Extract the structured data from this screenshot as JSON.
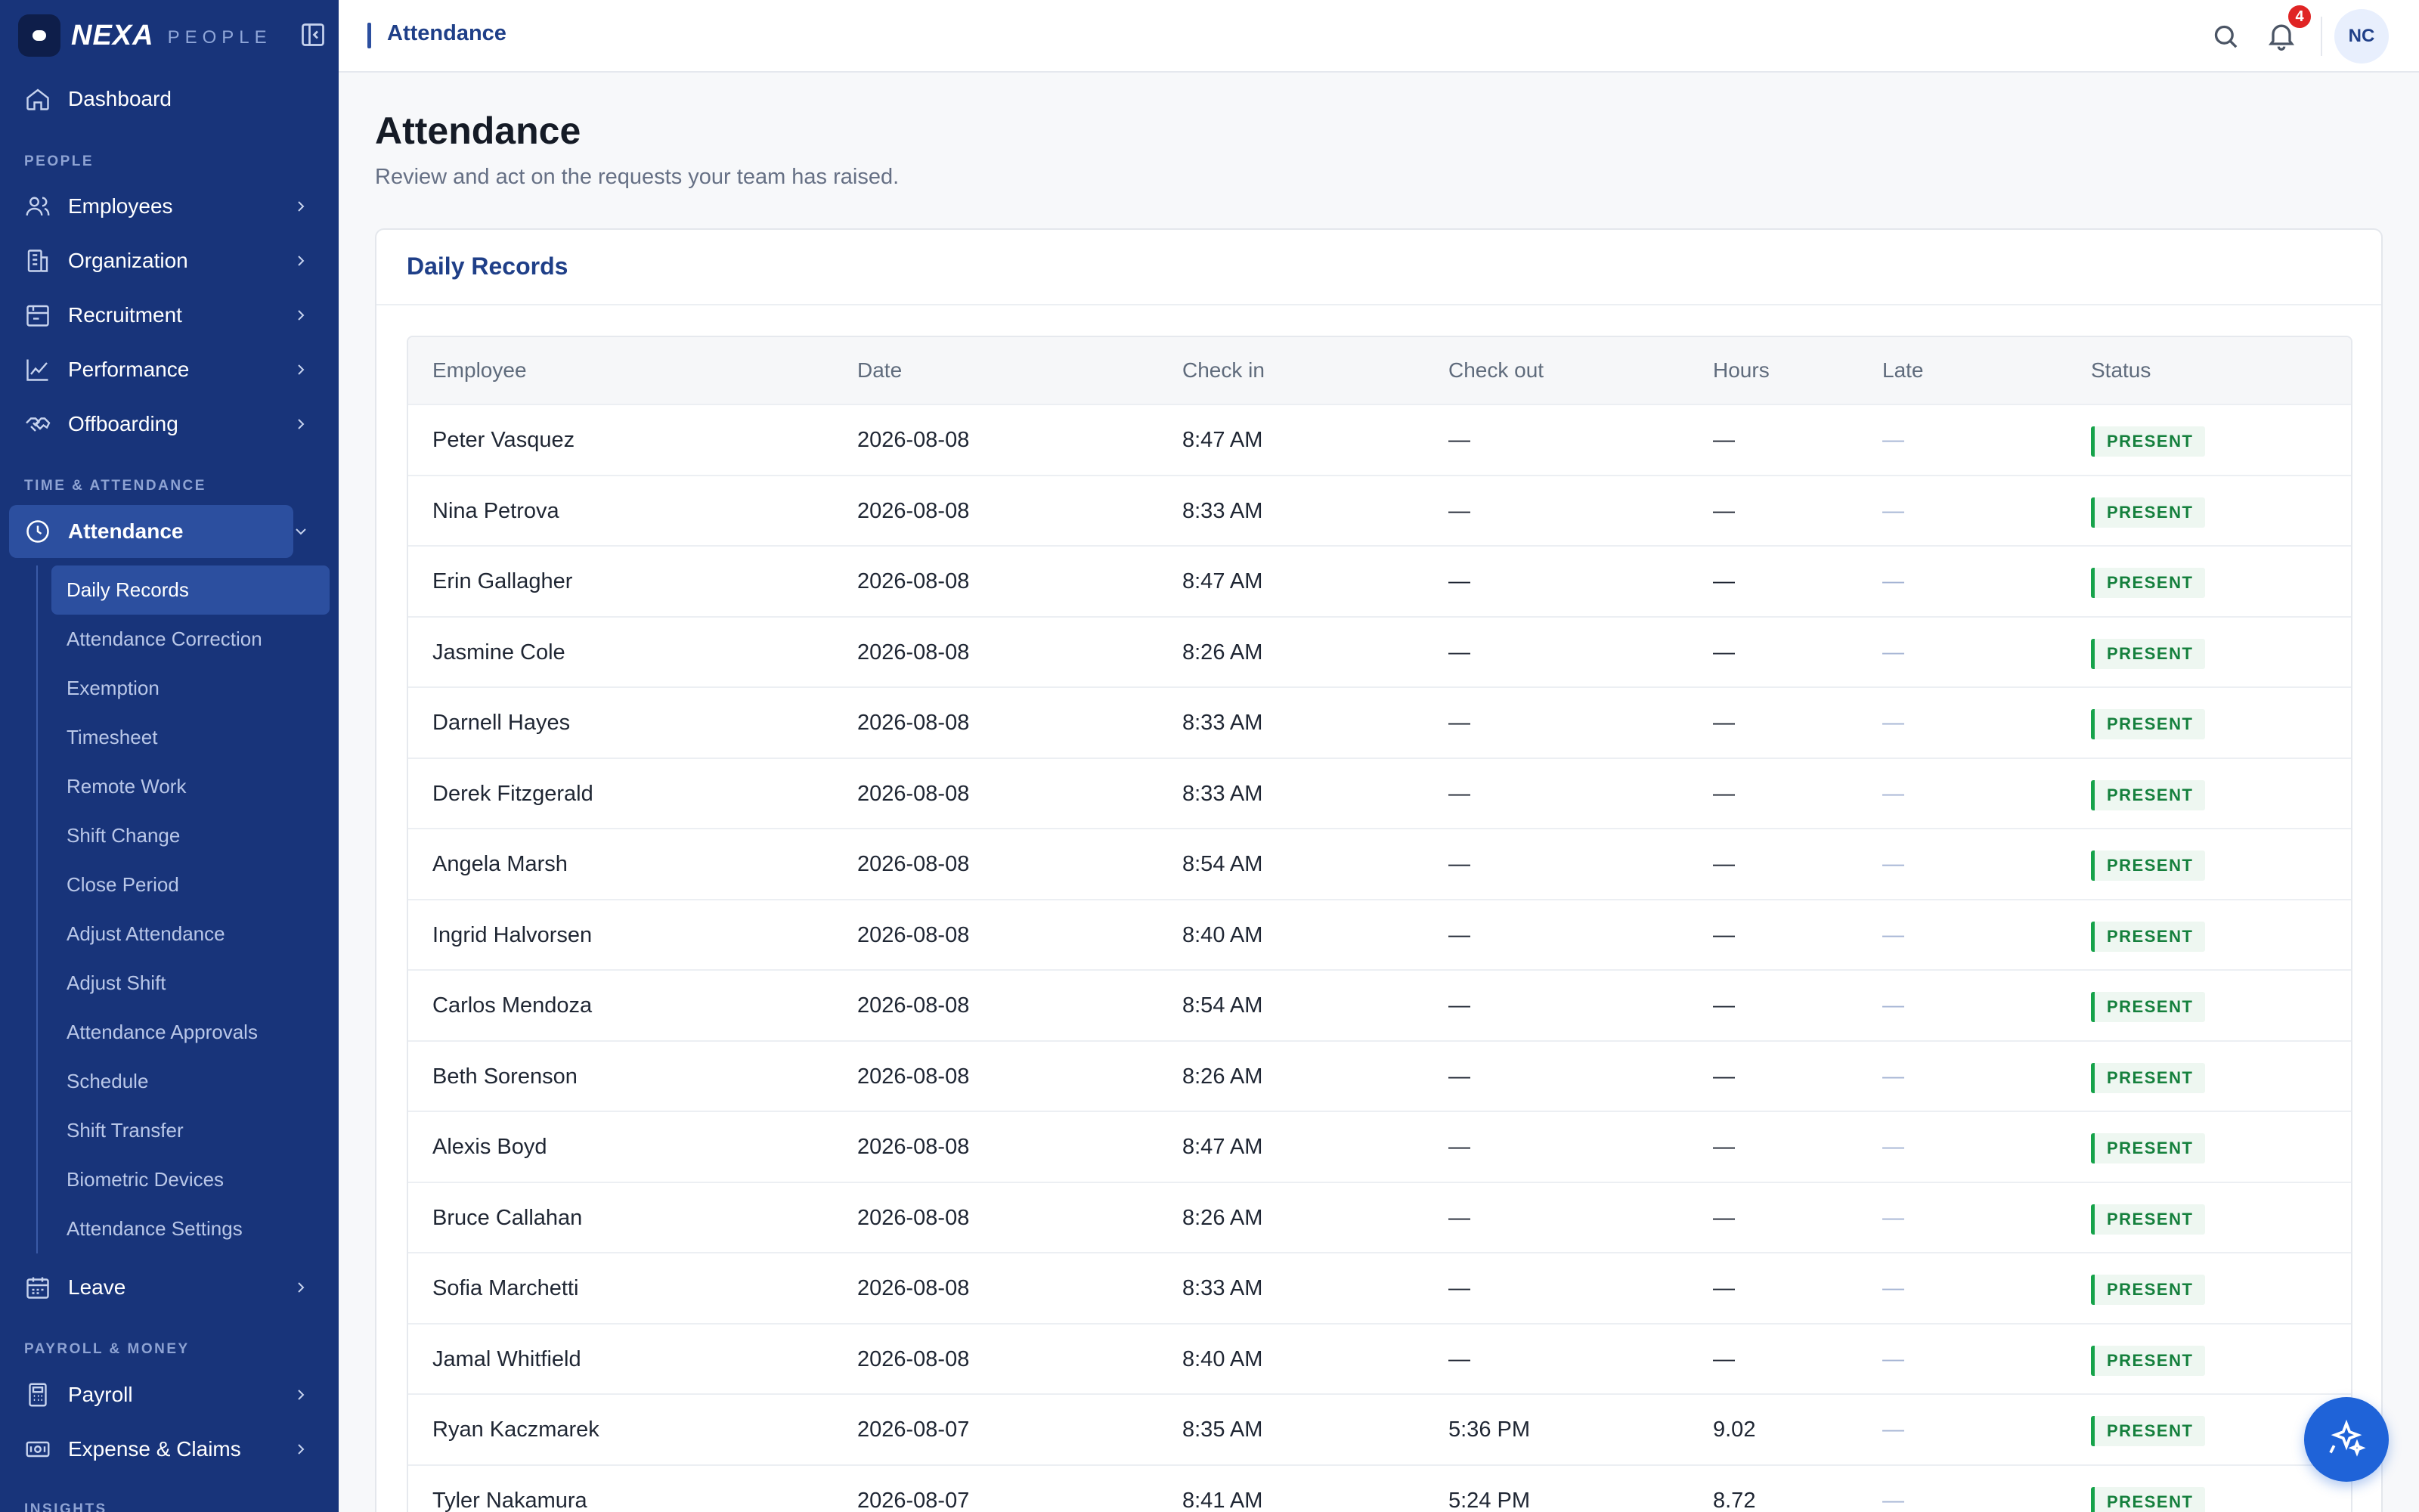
{
  "brand": {
    "name": "NEXA",
    "sub": "PEOPLE"
  },
  "sidebar": {
    "dashboard": "Dashboard",
    "sections": {
      "people": "PEOPLE",
      "time": "TIME & ATTENDANCE",
      "payroll": "PAYROLL & MONEY",
      "insights": "INSIGHTS"
    },
    "people_items": [
      "Employees",
      "Organization",
      "Recruitment",
      "Performance",
      "Offboarding"
    ],
    "attendance": "Attendance",
    "attendance_sub": [
      "Daily Records",
      "Attendance Correction",
      "Exemption",
      "Timesheet",
      "Remote Work",
      "Shift Change",
      "Close Period",
      "Adjust Attendance",
      "Adjust Shift",
      "Attendance Approvals",
      "Schedule",
      "Shift Transfer",
      "Biometric Devices",
      "Attendance Settings"
    ],
    "leave": "Leave",
    "payroll_items": [
      "Payroll",
      "Expense & Claims"
    ]
  },
  "topbar": {
    "breadcrumb": "Attendance",
    "notifications": "4",
    "avatar": "NC"
  },
  "page": {
    "title": "Attendance",
    "subtitle": "Review and act on the requests your team has raised."
  },
  "card": {
    "title": "Daily Records",
    "columns": [
      "Employee",
      "Date",
      "Check in",
      "Check out",
      "Hours",
      "Late",
      "Status"
    ],
    "rows": [
      [
        "Peter Vasquez",
        "2026-08-08",
        "8:47 AM",
        "—",
        "—",
        "—",
        "PRESENT"
      ],
      [
        "Nina Petrova",
        "2026-08-08",
        "8:33 AM",
        "—",
        "—",
        "—",
        "PRESENT"
      ],
      [
        "Erin Gallagher",
        "2026-08-08",
        "8:47 AM",
        "—",
        "—",
        "—",
        "PRESENT"
      ],
      [
        "Jasmine Cole",
        "2026-08-08",
        "8:26 AM",
        "—",
        "—",
        "—",
        "PRESENT"
      ],
      [
        "Darnell Hayes",
        "2026-08-08",
        "8:33 AM",
        "—",
        "—",
        "—",
        "PRESENT"
      ],
      [
        "Derek Fitzgerald",
        "2026-08-08",
        "8:33 AM",
        "—",
        "—",
        "—",
        "PRESENT"
      ],
      [
        "Angela Marsh",
        "2026-08-08",
        "8:54 AM",
        "—",
        "—",
        "—",
        "PRESENT"
      ],
      [
        "Ingrid Halvorsen",
        "2026-08-08",
        "8:40 AM",
        "—",
        "—",
        "—",
        "PRESENT"
      ],
      [
        "Carlos Mendoza",
        "2026-08-08",
        "8:54 AM",
        "—",
        "—",
        "—",
        "PRESENT"
      ],
      [
        "Beth Sorenson",
        "2026-08-08",
        "8:26 AM",
        "—",
        "—",
        "—",
        "PRESENT"
      ],
      [
        "Alexis Boyd",
        "2026-08-08",
        "8:47 AM",
        "—",
        "—",
        "—",
        "PRESENT"
      ],
      [
        "Bruce Callahan",
        "2026-08-08",
        "8:26 AM",
        "—",
        "—",
        "—",
        "PRESENT"
      ],
      [
        "Sofia Marchetti",
        "2026-08-08",
        "8:33 AM",
        "—",
        "—",
        "—",
        "PRESENT"
      ],
      [
        "Jamal Whitfield",
        "2026-08-08",
        "8:40 AM",
        "—",
        "—",
        "—",
        "PRESENT"
      ],
      [
        "Ryan Kaczmarek",
        "2026-08-07",
        "8:35 AM",
        "5:36 PM",
        "9.02",
        "—",
        "PRESENT"
      ],
      [
        "Tyler Nakamura",
        "2026-08-07",
        "8:41 AM",
        "5:24 PM",
        "8.72",
        "—",
        "PRESENT"
      ]
    ]
  },
  "colors": {
    "sidebar": "#18347a",
    "accent": "#1f3f88",
    "present": "#16a34a",
    "badge": "#e02424"
  }
}
